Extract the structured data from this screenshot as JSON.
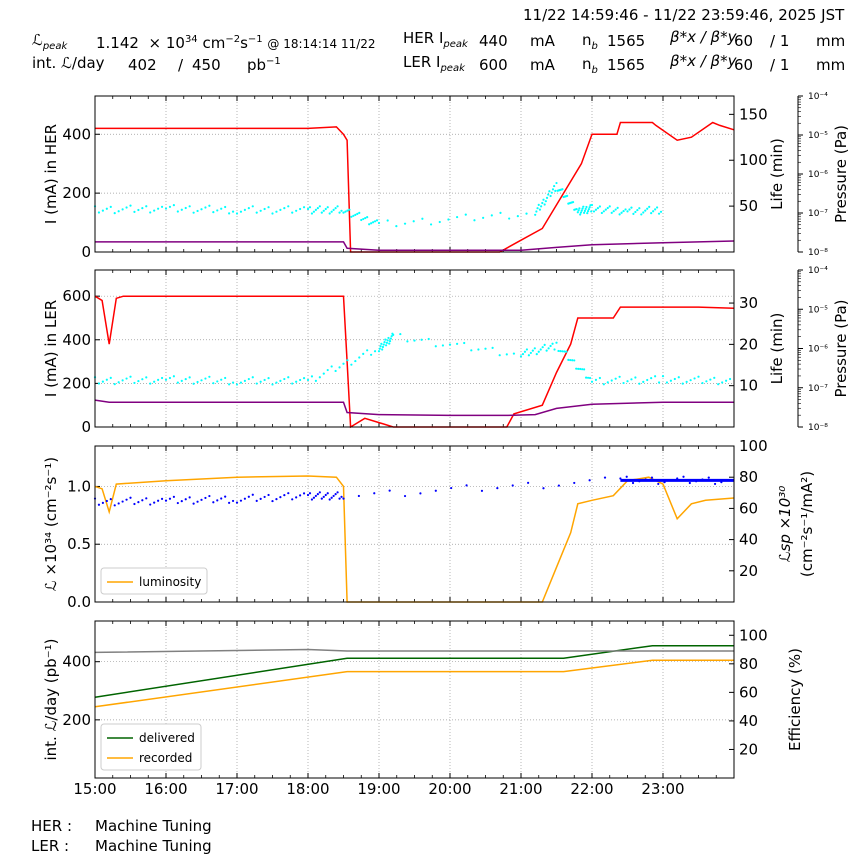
{
  "header": {
    "time_range": "11/22 14:59:46 - 11/22 23:59:46, 2025 JST",
    "lpeak_label": "ℒ",
    "lpeak_sub": "peak",
    "lpeak_value": "1.142",
    "lpeak_unit_pre": "× 10",
    "lpeak_exp": "34",
    "lpeak_unit": "cm",
    "lpeak_unit_exp1": "−2",
    "lpeak_unit_s": "s",
    "lpeak_unit_exp2": "−1",
    "lpeak_time": "@ 18:14:14 11/22",
    "intl_label": "int. ℒ/day",
    "intl_value": "402",
    "intl_sep": "/",
    "intl_goal": "450",
    "intl_unit": "pb",
    "intl_unit_exp": "−1",
    "her_label": "HER I",
    "her_sub": "peak",
    "her_value": "440",
    "her_unit": "mA",
    "ler_label": "LER I",
    "ler_sub": "peak",
    "ler_value": "600",
    "ler_unit": "mA",
    "nb_label": "n",
    "nb_sub": "b",
    "her_nb": "1565",
    "ler_nb": "1565",
    "beta_label": "β*x / β*y",
    "her_betax": "60",
    "her_betay": "/ 1",
    "ler_betax": "60",
    "ler_betay": "/ 1",
    "beta_unit": "mm"
  },
  "footer": {
    "her_label": "HER :",
    "her_status": "Machine Tuning",
    "ler_label": "LER :",
    "ler_status": "Machine Tuning"
  },
  "colors": {
    "current": "#ff0000",
    "life": "#800080",
    "pressure": "#00ffff",
    "luminosity": "#ffa500",
    "specific": "#0000ff",
    "delivered": "#006400",
    "recorded": "#ffa500",
    "efficiency": "#808080"
  },
  "chart_data": [
    {
      "id": "her",
      "type": "line",
      "ylabel": "I (mA) in HER",
      "ylim": [
        0,
        530
      ],
      "yticks": [
        0,
        200,
        400
      ],
      "y2label": "Life (min)",
      "y2lim": [
        0,
        170
      ],
      "y2ticks": [
        50,
        100,
        150
      ],
      "y3label": "Pressure (Pa)",
      "y3ticks": [
        "10⁻⁸",
        "10⁻⁷",
        "10⁻⁶",
        "10⁻⁵",
        "10⁻⁴"
      ],
      "series": [
        {
          "name": "current",
          "axis": "left",
          "color": "#ff0000",
          "x": [
            15.0,
            18.0,
            18.4,
            18.5,
            18.55,
            18.6,
            20.7,
            21.0,
            21.3,
            21.6,
            21.85,
            22.0,
            22.35,
            22.4,
            22.85,
            22.9,
            23.2,
            23.4,
            23.7,
            23.8,
            24.0
          ],
          "y": [
            420,
            420,
            425,
            400,
            380,
            0,
            0,
            40,
            80,
            200,
            300,
            400,
            400,
            440,
            440,
            430,
            380,
            390,
            440,
            430,
            415
          ]
        },
        {
          "name": "life",
          "axis": "right",
          "color": "#800080",
          "x": [
            15.0,
            18.5,
            18.55,
            19.0,
            20.0,
            21.0,
            21.5,
            22.0,
            22.5,
            23.0,
            23.5,
            24.0
          ],
          "y": [
            11,
            11,
            4,
            2,
            2,
            2,
            5,
            8,
            9,
            10,
            11,
            12
          ]
        },
        {
          "name": "pressure",
          "axis": "log",
          "color": "#00ffff",
          "x": [
            15.0,
            16.0,
            17.0,
            18.0,
            18.5,
            19.0,
            21.2,
            21.5,
            21.8,
            22.0,
            22.5,
            23.0
          ],
          "y": [
            1.2e-07,
            1.3e-07,
            1.2e-07,
            1.2e-07,
            1.2e-07,
            5e-08,
            1e-07,
            5e-07,
            1.1e-07,
            1.3e-07,
            1.1e-07,
            1.2e-07
          ]
        }
      ]
    },
    {
      "id": "ler",
      "type": "line",
      "ylabel": "I (mA) in LER",
      "ylim": [
        0,
        720
      ],
      "yticks": [
        0,
        200,
        400,
        600
      ],
      "y2label": "Life (min)",
      "y2lim": [
        0,
        38
      ],
      "y2ticks": [
        10,
        20,
        30
      ],
      "y3label": "Pressure (Pa)",
      "y3ticks": [
        "10⁻⁸",
        "10⁻⁷",
        "10⁻⁶",
        "10⁻⁵",
        "10⁻⁴"
      ],
      "series": [
        {
          "name": "current",
          "axis": "left",
          "color": "#ff0000",
          "x": [
            15.0,
            15.1,
            15.2,
            15.3,
            15.4,
            18.5,
            18.55,
            18.6,
            18.8,
            19.0,
            19.2,
            20.8,
            20.9,
            21.3,
            21.5,
            21.7,
            21.8,
            22.3,
            22.4,
            23.5,
            24.0
          ],
          "y": [
            600,
            580,
            380,
            590,
            600,
            600,
            300,
            0,
            40,
            20,
            0,
            0,
            60,
            100,
            250,
            380,
            500,
            500,
            550,
            550,
            545
          ]
        },
        {
          "name": "life",
          "axis": "right",
          "color": "#800080",
          "x": [
            15.0,
            15.2,
            18.5,
            18.55,
            19.0,
            20.0,
            20.8,
            21.2,
            21.5,
            22.0,
            23.0,
            24.0
          ],
          "y": [
            6.5,
            6,
            6,
            3.5,
            3,
            2.8,
            2.8,
            3,
            4.5,
            5.5,
            6,
            6
          ]
        },
        {
          "name": "pressure",
          "axis": "log",
          "color": "#00ffff",
          "x": [
            15.0,
            16.0,
            17.0,
            18.0,
            19.0,
            19.2,
            21.0,
            21.5,
            22.0,
            23.0,
            24.0
          ],
          "y": [
            1.5e-07,
            1.6e-07,
            1.5e-07,
            1.5e-07,
            1e-06,
            2e-06,
            7e-07,
            1.2e-06,
            1.5e-07,
            1.6e-07,
            1.5e-07
          ]
        }
      ]
    },
    {
      "id": "lum",
      "type": "line",
      "ylabel": "ℒ ×10³⁴ (cm⁻²s⁻¹)",
      "ylim": [
        0,
        1.35
      ],
      "yticks": [
        0.0,
        0.5,
        1.0
      ],
      "y2label": "ℒsp ×10³⁰",
      "y2label2": "(cm⁻²s⁻¹/mA²)",
      "y2lim": [
        0,
        100
      ],
      "y2ticks": [
        20,
        40,
        60,
        80,
        100
      ],
      "legend": [
        "luminosity"
      ],
      "series": [
        {
          "name": "luminosity",
          "axis": "left",
          "color": "#ffa500",
          "x": [
            15.0,
            15.1,
            15.2,
            15.3,
            16.0,
            17.0,
            18.0,
            18.4,
            18.5,
            18.55,
            21.3,
            21.5,
            21.7,
            21.8,
            22.0,
            22.3,
            22.5,
            22.8,
            23.0,
            23.2,
            23.4,
            23.6,
            24.0
          ],
          "y": [
            1.0,
            0.98,
            0.78,
            1.02,
            1.05,
            1.08,
            1.09,
            1.08,
            1.0,
            0.0,
            0.0,
            0.3,
            0.6,
            0.85,
            0.88,
            0.92,
            1.05,
            1.08,
            1.02,
            0.72,
            0.85,
            0.88,
            0.9
          ]
        },
        {
          "name": "specific",
          "axis": "right",
          "color": "#0000ff",
          "x": [
            15.0,
            16.0,
            17.0,
            18.0,
            18.5,
            22.4,
            24.0
          ],
          "y": [
            64,
            65,
            66,
            68,
            68,
            78,
            78
          ]
        }
      ]
    },
    {
      "id": "int",
      "type": "line",
      "ylabel": "int. ℒ/day (pb⁻¹)",
      "ylim": [
        0,
        540
      ],
      "yticks": [
        200,
        400
      ],
      "y2label": "Efficiency (%)",
      "y2lim": [
        0,
        110
      ],
      "y2ticks": [
        20,
        40,
        60,
        80,
        100
      ],
      "xlim": [
        15,
        24
      ],
      "xticks": [
        "15:00",
        "16:00",
        "17:00",
        "18:00",
        "19:00",
        "20:00",
        "21:00",
        "22:00",
        "23:00"
      ],
      "legend": [
        "delivered",
        "recorded"
      ],
      "series": [
        {
          "name": "delivered",
          "axis": "left",
          "color": "#006400",
          "x": [
            15.0,
            18.55,
            21.6,
            22.85,
            24.0
          ],
          "y": [
            278,
            412,
            412,
            455,
            455
          ]
        },
        {
          "name": "recorded",
          "axis": "left",
          "color": "#ffa500",
          "x": [
            15.0,
            18.55,
            21.6,
            22.85,
            24.0
          ],
          "y": [
            245,
            366,
            366,
            405,
            405
          ]
        },
        {
          "name": "efficiency",
          "axis": "right",
          "color": "#808080",
          "x": [
            15.0,
            18.0,
            18.55,
            21.0,
            24.0
          ],
          "y": [
            88,
            90,
            89,
            89,
            89
          ]
        }
      ]
    }
  ]
}
